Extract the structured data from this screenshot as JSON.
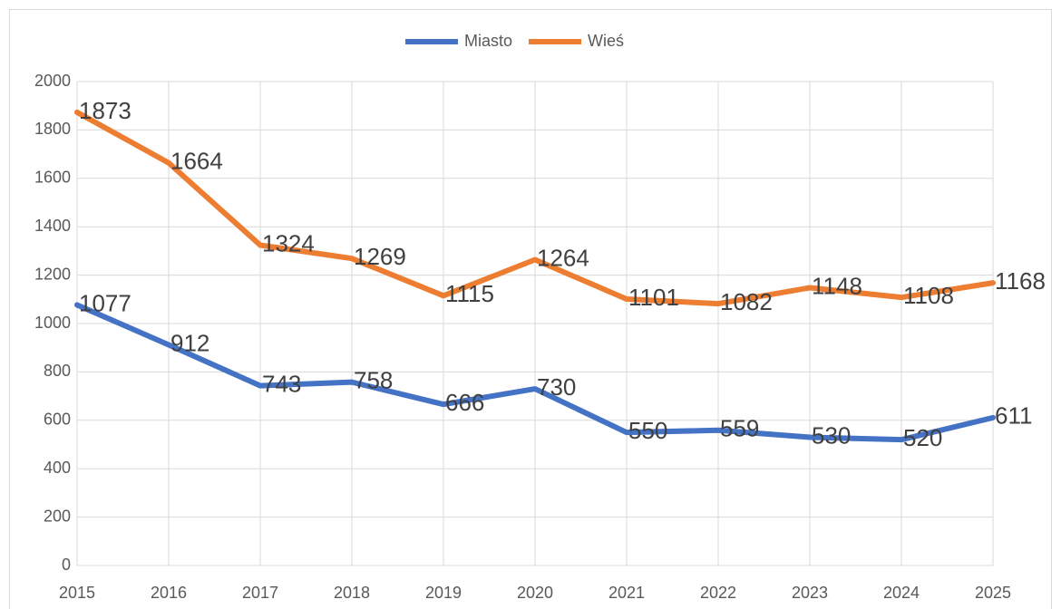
{
  "chart_data": {
    "type": "line",
    "categories": [
      "2015",
      "2016",
      "2017",
      "2018",
      "2019",
      "2020",
      "2021",
      "2022",
      "2023",
      "2024",
      "2025"
    ],
    "series": [
      {
        "name": "Miasto",
        "color": "#4472c4",
        "values": [
          1077,
          912,
          743,
          758,
          666,
          730,
          550,
          559,
          530,
          520,
          611
        ]
      },
      {
        "name": "Wieś",
        "color": "#ed7d31",
        "values": [
          1873,
          1664,
          1324,
          1269,
          1115,
          1264,
          1101,
          1082,
          1148,
          1108,
          1168
        ]
      }
    ],
    "ylim": [
      0,
      2000
    ],
    "yticks": [
      0,
      200,
      400,
      600,
      800,
      1000,
      1200,
      1400,
      1600,
      1800,
      2000
    ],
    "grid": true,
    "legend": "top"
  }
}
